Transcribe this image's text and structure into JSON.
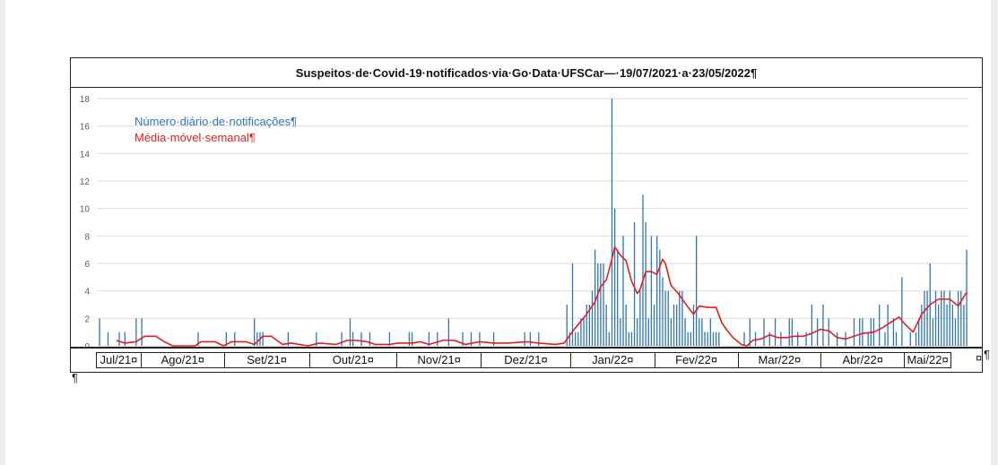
{
  "document": {
    "pilcrow": "¶",
    "cell_end": "¤"
  },
  "chart_data": {
    "type": "bar",
    "title": "Suspeitos·de·Covid-19·notificados·via·Go·Data·UFSCar—·19/07/2021·a·23/05/2022¶",
    "ylim": [
      0,
      18
    ],
    "yticks": [
      0,
      2,
      4,
      6,
      8,
      10,
      12,
      14,
      16,
      18
    ],
    "grid": true,
    "legend_position": "top-left",
    "x_start": "2021-07-19",
    "x_end": "2022-05-23",
    "series": [
      {
        "name": "Número·diário·de·notificações¶",
        "kind": "bar",
        "color": "#2e75b6",
        "points": [
          [
            "2021-07-19",
            2
          ],
          [
            "2021-07-22",
            1
          ],
          [
            "2021-07-26",
            1
          ],
          [
            "2021-07-28",
            1
          ],
          [
            "2021-08-01",
            2
          ],
          [
            "2021-08-03",
            2
          ],
          [
            "2021-08-23",
            1
          ],
          [
            "2021-09-02",
            1
          ],
          [
            "2021-09-05",
            1
          ],
          [
            "2021-09-12",
            2
          ],
          [
            "2021-09-13",
            1
          ],
          [
            "2021-09-14",
            1
          ],
          [
            "2021-09-15",
            1
          ],
          [
            "2021-09-24",
            1
          ],
          [
            "2021-10-04",
            1
          ],
          [
            "2021-10-13",
            1
          ],
          [
            "2021-10-16",
            2
          ],
          [
            "2021-10-17",
            1
          ],
          [
            "2021-10-20",
            1
          ],
          [
            "2021-10-23",
            1
          ],
          [
            "2021-10-30",
            1
          ],
          [
            "2021-11-06",
            1
          ],
          [
            "2021-11-07",
            1
          ],
          [
            "2021-11-13",
            1
          ],
          [
            "2021-11-16",
            1
          ],
          [
            "2021-11-20",
            2
          ],
          [
            "2021-11-25",
            1
          ],
          [
            "2021-11-28",
            1
          ],
          [
            "2021-12-01",
            1
          ],
          [
            "2021-12-06",
            1
          ],
          [
            "2021-12-17",
            1
          ],
          [
            "2021-12-19",
            1
          ],
          [
            "2021-12-22",
            1
          ],
          [
            "2022-01-01",
            3
          ],
          [
            "2022-01-02",
            1
          ],
          [
            "2022-01-03",
            6
          ],
          [
            "2022-01-04",
            1
          ],
          [
            "2022-01-05",
            1
          ],
          [
            "2022-01-06",
            2
          ],
          [
            "2022-01-07",
            2
          ],
          [
            "2022-01-08",
            3
          ],
          [
            "2022-01-09",
            3
          ],
          [
            "2022-01-10",
            4
          ],
          [
            "2022-01-11",
            7
          ],
          [
            "2022-01-12",
            6
          ],
          [
            "2022-01-13",
            6
          ],
          [
            "2022-01-14",
            6
          ],
          [
            "2022-01-15",
            3
          ],
          [
            "2022-01-16",
            1
          ],
          [
            "2022-01-17",
            18
          ],
          [
            "2022-01-18",
            10
          ],
          [
            "2022-01-19",
            7
          ],
          [
            "2022-01-20",
            2
          ],
          [
            "2022-01-21",
            8
          ],
          [
            "2022-01-22",
            3
          ],
          [
            "2022-01-23",
            1
          ],
          [
            "2022-01-24",
            1
          ],
          [
            "2022-01-25",
            9
          ],
          [
            "2022-01-26",
            2
          ],
          [
            "2022-01-27",
            4
          ],
          [
            "2022-01-28",
            11
          ],
          [
            "2022-01-29",
            9
          ],
          [
            "2022-01-30",
            2
          ],
          [
            "2022-01-31",
            8
          ],
          [
            "2022-02-01",
            3
          ],
          [
            "2022-02-02",
            8
          ],
          [
            "2022-02-03",
            7
          ],
          [
            "2022-02-04",
            5
          ],
          [
            "2022-02-05",
            4
          ],
          [
            "2022-02-06",
            4
          ],
          [
            "2022-02-07",
            2
          ],
          [
            "2022-02-08",
            3
          ],
          [
            "2022-02-09",
            3
          ],
          [
            "2022-02-10",
            4
          ],
          [
            "2022-02-11",
            4
          ],
          [
            "2022-02-12",
            2
          ],
          [
            "2022-02-13",
            1
          ],
          [
            "2022-02-14",
            1
          ],
          [
            "2022-02-15",
            3
          ],
          [
            "2022-02-16",
            8
          ],
          [
            "2022-02-17",
            2
          ],
          [
            "2022-02-18",
            2
          ],
          [
            "2022-02-19",
            1
          ],
          [
            "2022-02-20",
            1
          ],
          [
            "2022-02-21",
            2
          ],
          [
            "2022-02-22",
            1
          ],
          [
            "2022-02-23",
            1
          ],
          [
            "2022-02-24",
            1
          ],
          [
            "2022-03-05",
            1
          ],
          [
            "2022-03-07",
            2
          ],
          [
            "2022-03-09",
            1
          ],
          [
            "2022-03-12",
            2
          ],
          [
            "2022-03-14",
            1
          ],
          [
            "2022-03-16",
            2
          ],
          [
            "2022-03-18",
            1
          ],
          [
            "2022-03-21",
            2
          ],
          [
            "2022-03-22",
            2
          ],
          [
            "2022-03-24",
            1
          ],
          [
            "2022-03-27",
            1
          ],
          [
            "2022-03-29",
            3
          ],
          [
            "2022-03-31",
            2
          ],
          [
            "2022-04-02",
            3
          ],
          [
            "2022-04-04",
            2
          ],
          [
            "2022-04-07",
            1
          ],
          [
            "2022-04-10",
            1
          ],
          [
            "2022-04-13",
            2
          ],
          [
            "2022-04-15",
            2
          ],
          [
            "2022-04-16",
            2
          ],
          [
            "2022-04-18",
            1
          ],
          [
            "2022-04-19",
            2
          ],
          [
            "2022-04-20",
            2
          ],
          [
            "2022-04-22",
            3
          ],
          [
            "2022-04-24",
            1
          ],
          [
            "2022-04-25",
            3
          ],
          [
            "2022-04-27",
            2
          ],
          [
            "2022-04-28",
            1
          ],
          [
            "2022-04-30",
            5
          ],
          [
            "2022-05-03",
            1
          ],
          [
            "2022-05-05",
            1
          ],
          [
            "2022-05-06",
            2
          ],
          [
            "2022-05-07",
            3
          ],
          [
            "2022-05-08",
            4
          ],
          [
            "2022-05-09",
            4
          ],
          [
            "2022-05-10",
            6
          ],
          [
            "2022-05-11",
            2
          ],
          [
            "2022-05-12",
            4
          ],
          [
            "2022-05-13",
            3
          ],
          [
            "2022-05-14",
            4
          ],
          [
            "2022-05-15",
            4
          ],
          [
            "2022-05-16",
            3
          ],
          [
            "2022-05-17",
            4
          ],
          [
            "2022-05-18",
            3
          ],
          [
            "2022-05-19",
            2
          ],
          [
            "2022-05-20",
            4
          ],
          [
            "2022-05-21",
            4
          ],
          [
            "2022-05-22",
            3
          ],
          [
            "2022-05-23",
            7
          ]
        ]
      },
      {
        "name": "Média·móvel·semanal¶",
        "kind": "line",
        "color": "#e0201b",
        "points": [
          [
            "2021-07-25",
            0.4
          ],
          [
            "2021-07-28",
            0.2
          ],
          [
            "2021-08-01",
            0.3
          ],
          [
            "2021-08-04",
            0.7
          ],
          [
            "2021-08-08",
            0.7
          ],
          [
            "2021-08-11",
            0.3
          ],
          [
            "2021-08-14",
            0
          ],
          [
            "2021-08-22",
            0
          ],
          [
            "2021-08-24",
            0.3
          ],
          [
            "2021-08-29",
            0.3
          ],
          [
            "2021-09-01",
            0
          ],
          [
            "2021-09-04",
            0.3
          ],
          [
            "2021-09-09",
            0.3
          ],
          [
            "2021-09-12",
            0.1
          ],
          [
            "2021-09-15",
            0.7
          ],
          [
            "2021-09-18",
            0.7
          ],
          [
            "2021-09-22",
            0.1
          ],
          [
            "2021-09-25",
            0.2
          ],
          [
            "2021-10-01",
            0
          ],
          [
            "2021-10-05",
            0.2
          ],
          [
            "2021-10-11",
            0.1
          ],
          [
            "2021-10-15",
            0.4
          ],
          [
            "2021-10-18",
            0.4
          ],
          [
            "2021-10-22",
            0.3
          ],
          [
            "2021-10-25",
            0.1
          ],
          [
            "2021-10-30",
            0.1
          ],
          [
            "2021-11-02",
            0.2
          ],
          [
            "2021-11-07",
            0.2
          ],
          [
            "2021-11-10",
            0.3
          ],
          [
            "2021-11-13",
            0.1
          ],
          [
            "2021-11-18",
            0.4
          ],
          [
            "2021-11-22",
            0.4
          ],
          [
            "2021-11-26",
            0.1
          ],
          [
            "2021-12-01",
            0.3
          ],
          [
            "2021-12-06",
            0.2
          ],
          [
            "2021-12-11",
            0.2
          ],
          [
            "2021-12-18",
            0.3
          ],
          [
            "2021-12-22",
            0.2
          ],
          [
            "2021-12-28",
            0.1
          ],
          [
            "2021-12-31",
            0.2
          ],
          [
            "2022-01-04",
            1.3
          ],
          [
            "2022-01-08",
            2.3
          ],
          [
            "2022-01-11",
            3.2
          ],
          [
            "2022-01-13",
            4.3
          ],
          [
            "2022-01-15",
            4.8
          ],
          [
            "2022-01-17",
            6.3
          ],
          [
            "2022-01-18",
            7.2
          ],
          [
            "2022-01-20",
            6.6
          ],
          [
            "2022-01-22",
            6.2
          ],
          [
            "2022-01-24",
            4.7
          ],
          [
            "2022-01-26",
            3.8
          ],
          [
            "2022-01-27",
            4.1
          ],
          [
            "2022-01-29",
            5.4
          ],
          [
            "2022-01-31",
            5.4
          ],
          [
            "2022-02-02",
            5.2
          ],
          [
            "2022-02-04",
            6.3
          ],
          [
            "2022-02-05",
            6.0
          ],
          [
            "2022-02-07",
            4.4
          ],
          [
            "2022-02-10",
            3.7
          ],
          [
            "2022-02-12",
            3.1
          ],
          [
            "2022-02-15",
            2.3
          ],
          [
            "2022-02-17",
            2.9
          ],
          [
            "2022-02-20",
            2.8
          ],
          [
            "2022-02-23",
            2.8
          ],
          [
            "2022-02-25",
            1.7
          ],
          [
            "2022-02-27",
            1.1
          ],
          [
            "2022-03-01",
            0.6
          ],
          [
            "2022-03-04",
            0.1
          ],
          [
            "2022-03-06",
            0
          ],
          [
            "2022-03-08",
            0.4
          ],
          [
            "2022-03-11",
            0.5
          ],
          [
            "2022-03-14",
            0.8
          ],
          [
            "2022-03-17",
            0.6
          ],
          [
            "2022-03-20",
            0.6
          ],
          [
            "2022-03-23",
            0.7
          ],
          [
            "2022-03-26",
            0.7
          ],
          [
            "2022-03-29",
            0.9
          ],
          [
            "2022-04-01",
            1.2
          ],
          [
            "2022-04-04",
            1.1
          ],
          [
            "2022-04-07",
            0.6
          ],
          [
            "2022-04-10",
            0.5
          ],
          [
            "2022-04-13",
            0.7
          ],
          [
            "2022-04-16",
            0.9
          ],
          [
            "2022-04-20",
            1.0
          ],
          [
            "2022-04-23",
            1.3
          ],
          [
            "2022-04-26",
            1.7
          ],
          [
            "2022-04-29",
            2.1
          ],
          [
            "2022-05-01",
            1.6
          ],
          [
            "2022-05-04",
            1.0
          ],
          [
            "2022-05-07",
            2.3
          ],
          [
            "2022-05-10",
            3.0
          ],
          [
            "2022-05-13",
            3.4
          ],
          [
            "2022-05-17",
            3.4
          ],
          [
            "2022-05-20",
            2.9
          ],
          [
            "2022-05-23",
            3.9
          ]
        ]
      }
    ],
    "month_labels": [
      "Jul/21¤",
      "Ago/21¤",
      "Set/21¤",
      "Out/21¤",
      "Nov/21¤",
      "Dez/21¤",
      "Jan/22¤",
      "Fev/22¤",
      "Mar/22¤",
      "Abr/22¤",
      "Mai/22¤"
    ]
  }
}
